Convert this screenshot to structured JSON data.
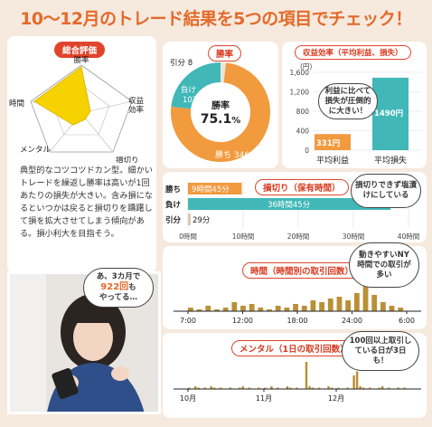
{
  "page_title": "10～12月のトレード結果を5つの項目でチェック！",
  "colors": {
    "orange": "#f19a3e",
    "teal": "#41b7b8",
    "yellow": "#f5d200",
    "gold": "#b99037",
    "red": "#e0452c"
  },
  "evaluation": {
    "title": "総合評価",
    "axes": [
      "勝率",
      "収益効率",
      "損切り",
      "メンタル",
      "時間"
    ],
    "description": "典型的なコツコツドカン型。細かいトレードを繰返し勝率は高いが1回あたりの損失が大きい。含み損になるといつかは戻ると損切りを躊躇して損を拡大させてしまう傾向がある。損小利大を目指そう。"
  },
  "win_rate": {
    "title": "勝率",
    "center_label": "勝率",
    "center_value": "75.1",
    "center_unit": "%",
    "segments": [
      {
        "label": "勝ち",
        "value": 346,
        "text": "勝ち 346"
      },
      {
        "label": "負け",
        "value": 107,
        "text_line1": "負け",
        "text_line2": "107"
      },
      {
        "label": "引分",
        "value": 8,
        "text": "引分 8"
      }
    ]
  },
  "profit_efficiency": {
    "title": "収益効率（平均利益、損失）",
    "unit": "(円)",
    "y_ticks": [
      "1,600",
      "1,200",
      "800",
      "400",
      "0"
    ],
    "bars": [
      {
        "label": "平均利益",
        "value": 331,
        "value_text": "331円"
      },
      {
        "label": "平均損失",
        "value": 1490,
        "value_text": "1490円"
      }
    ],
    "callout": "利益に比べて損失が圧倒的に大きい！"
  },
  "stop_loss": {
    "title": "損切り（保有時間）",
    "rows": [
      {
        "label": "勝ち",
        "value_text": "9時間45分",
        "hours": 9.75
      },
      {
        "label": "負け",
        "value_text": "36時間45分",
        "hours": 36.75
      },
      {
        "label": "引分",
        "value_text": "29分",
        "hours": 0.48
      }
    ],
    "x_ticks": [
      "0時間",
      "10時間",
      "20時間",
      "30時間",
      "40時間"
    ],
    "callout": "損切りできず塩漬けにしている"
  },
  "time": {
    "title": "時間（時間別の取引回数）",
    "x_ticks": [
      "7:00",
      "12:00",
      "18:00",
      "24:00",
      "6:00"
    ],
    "callout": "動きやすいNY時間での取引が多い",
    "values": [
      2,
      1,
      3,
      1,
      2,
      5,
      3,
      4,
      2,
      1,
      3,
      2,
      4,
      3,
      6,
      5,
      7,
      8,
      6,
      10,
      14,
      9,
      5,
      3,
      2
    ]
  },
  "mental": {
    "title": "メンタル（1日の取引回数）",
    "x_ticks": [
      "10月",
      "11月",
      "12月"
    ],
    "callout": "100回以上取引している日が3日も！",
    "values": [
      1,
      0,
      2,
      1,
      0,
      1,
      0,
      2,
      1,
      0,
      1,
      0,
      0,
      1,
      0,
      0,
      1,
      2,
      0,
      1,
      0,
      0,
      1,
      0,
      1,
      0,
      2,
      0,
      1,
      0,
      0,
      2,
      1,
      0,
      1,
      0,
      0,
      20,
      2,
      1,
      0,
      1,
      0,
      0,
      2,
      1,
      0,
      1,
      0,
      0,
      1,
      0,
      10,
      13,
      2,
      1,
      0,
      1,
      0,
      0,
      1,
      2,
      0,
      1,
      0,
      0,
      1,
      0,
      1
    ]
  },
  "photo_bubble": {
    "line1": "あ、3カ月で",
    "highlight": "922回",
    "line2": "も",
    "line3": "やってる…"
  }
}
